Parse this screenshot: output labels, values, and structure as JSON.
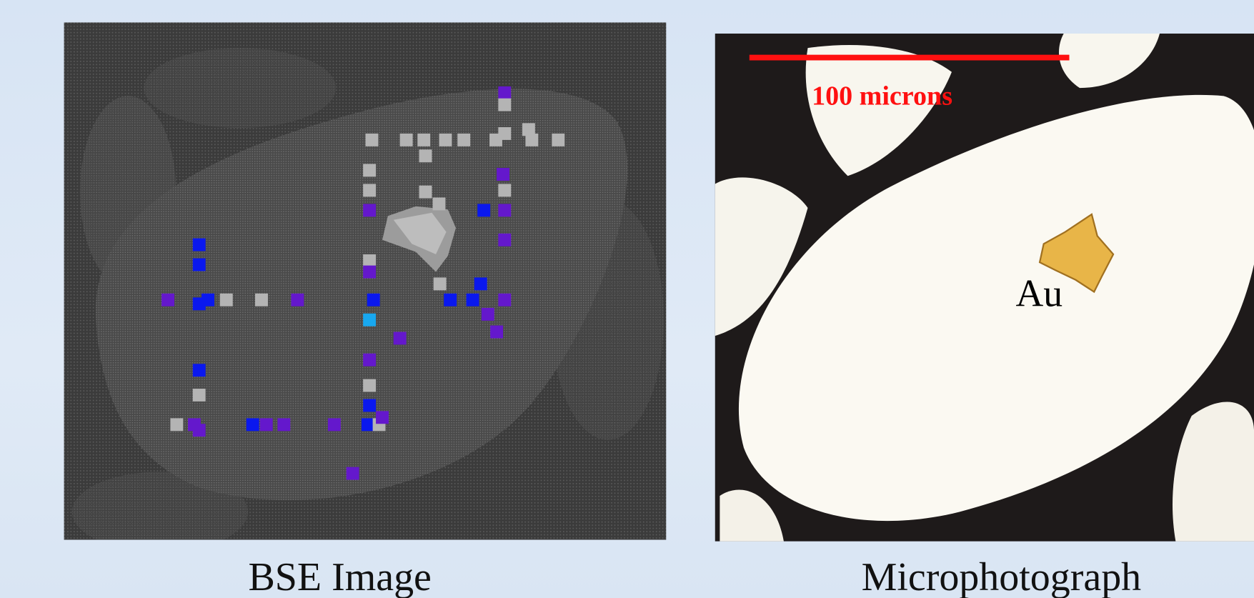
{
  "images": [
    {
      "caption": "BSE Image"
    },
    {
      "caption": "Microphotograph",
      "scale_bar": "100 microns",
      "label": "Au"
    }
  ]
}
